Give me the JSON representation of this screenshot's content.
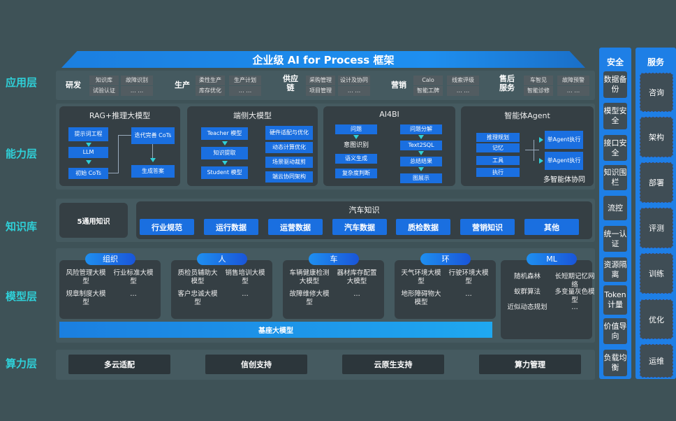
{
  "title": "企业级 AI for Process 框架",
  "app_layer": {
    "label": "应用层",
    "groups": [
      {
        "name": "研发",
        "items": [
          "知识库",
          "试验认证",
          "故障识别",
          "… …"
        ]
      },
      {
        "name": "生产",
        "items": [
          "柔性生产",
          "库存优化",
          "生产计划",
          "… …"
        ]
      },
      {
        "name": "供应链",
        "items": [
          "采购管理",
          "项目管理",
          "设计及协同",
          "… …"
        ]
      },
      {
        "name": "营销",
        "items": [
          "Calo",
          "智能工牌",
          "线索评级",
          "… …"
        ]
      },
      {
        "name": "售后服务",
        "items": [
          "车智见",
          "智能诊修",
          "故障预警",
          "… …"
        ]
      }
    ]
  },
  "capability": {
    "label": "能力层",
    "rag": {
      "title": "RAG+推理大模型",
      "nodes": [
        "提示词工程",
        "LLM",
        "初始 CoTs",
        "迭代完善 CoTs",
        "生成答案"
      ]
    },
    "edge": {
      "title": "端侧大模型",
      "left": [
        "Teacher 模型",
        "知识提取",
        "Student 模型"
      ],
      "right": [
        "硬件适配与优化",
        "动态计算优化",
        "场景驱动裁剪",
        "端云协同架构"
      ]
    },
    "ai4bi": {
      "title": "AI4BI",
      "left": [
        "问题",
        "意图识别",
        "语义生成",
        "复杂度判断"
      ],
      "right": [
        "问题分解",
        "Text2SQL",
        "总结结果",
        "图展示"
      ]
    },
    "agent": {
      "title": "智能体Agent",
      "left": [
        "推理规划",
        "记忆",
        "工具",
        "执行"
      ],
      "right": [
        "单Agent执行",
        "单Agent执行"
      ],
      "caption": "多智能体协同"
    }
  },
  "knowledge": {
    "label": "知识库",
    "general": "5通用知识",
    "auto_title": "汽车知识",
    "chips": [
      "行业规范",
      "运行数据",
      "运营数据",
      "汽车数据",
      "质检数据",
      "营销知识",
      "其他"
    ]
  },
  "model": {
    "label": "模型层",
    "base": "基座大模型",
    "groups": [
      {
        "tag": "组织",
        "items": [
          "风险管理大模型",
          "行业标准大模型",
          "规章制度大模型",
          "…"
        ]
      },
      {
        "tag": "人",
        "items": [
          "质检员辅助大模型",
          "销售培训大模型",
          "客户忠诚大模型",
          "…"
        ]
      },
      {
        "tag": "车",
        "items": [
          "车辆健康检测大模型",
          "器材库存配置大模型",
          "故障维修大模型",
          "…"
        ]
      },
      {
        "tag": "环",
        "items": [
          "天气环境大模型",
          "行驶环境大模型",
          "地形障碍物大模型",
          "…"
        ]
      },
      {
        "tag": "ML",
        "items": [
          "随机森林",
          "长短期记忆网络",
          "蚁群算法",
          "多变量灰色模型",
          "近似动态规划",
          "…"
        ]
      }
    ]
  },
  "compute": {
    "label": "算力层",
    "items": [
      "多云适配",
      "信创支持",
      "云原生支持",
      "算力管理"
    ]
  },
  "security": {
    "title": "安全",
    "items": [
      "数据备份",
      "模型安全",
      "接口安全",
      "知识围栏",
      "流控",
      "统一认证",
      "资源隔离",
      "Token计量",
      "价值导向",
      "负载均衡"
    ]
  },
  "service": {
    "title": "服务",
    "items": [
      "咨询",
      "架构",
      "部署",
      "评测",
      "训练",
      "优化",
      "运维"
    ]
  },
  "colors": {
    "accent": "#1a6fe0",
    "layer_label": "#2fd0d8",
    "background": "#3e5257"
  }
}
